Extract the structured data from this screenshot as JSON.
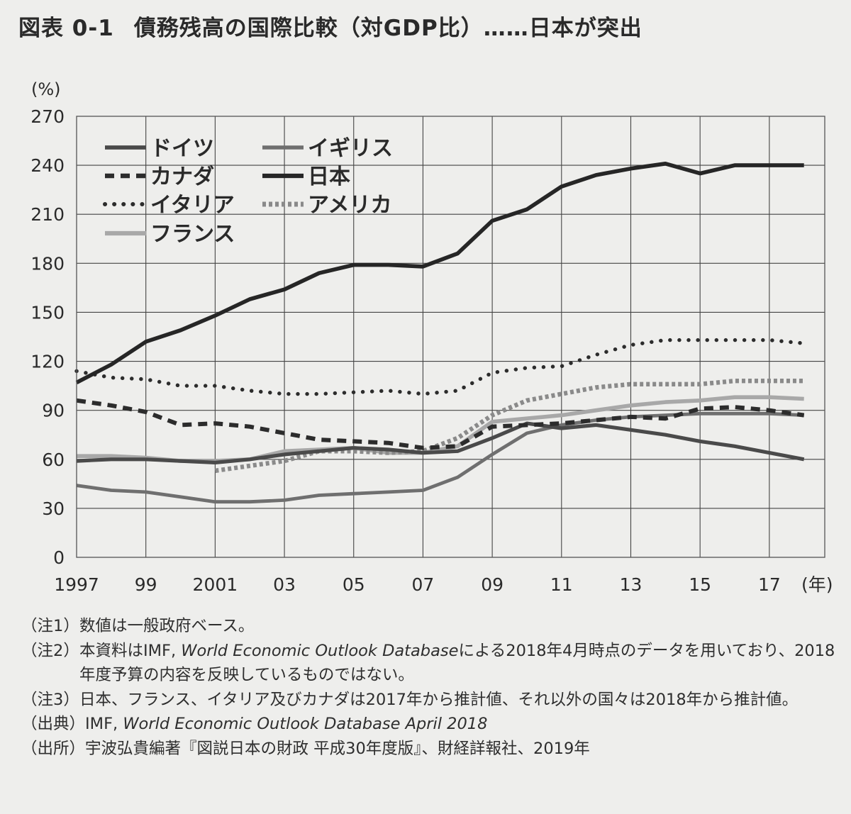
{
  "title": {
    "figure_number": "図表 0-1",
    "text": "債務残高の国際比較（対GDP比）……日本が突出"
  },
  "chart_data": {
    "type": "line",
    "y_unit_label": "(%)",
    "x_unit_label": "(年)",
    "ylim": [
      0,
      270
    ],
    "y_ticks": [
      0,
      30,
      60,
      90,
      120,
      150,
      180,
      210,
      240,
      270
    ],
    "y_tick_labels": [
      "0",
      "30",
      "60",
      "90",
      "120",
      "150",
      "180",
      "210",
      "240",
      "270"
    ],
    "xlim": [
      1997,
      2018.6
    ],
    "x_ticks": [
      1997,
      1999,
      2001,
      2003,
      2005,
      2007,
      2009,
      2011,
      2013,
      2015,
      2017
    ],
    "x_tick_labels": [
      "1997",
      "99",
      "2001",
      "03",
      "05",
      "07",
      "09",
      "11",
      "13",
      "15",
      "17"
    ],
    "x_gridlines": [
      1999,
      2001,
      2003,
      2005,
      2007,
      2009,
      2011,
      2013,
      2015,
      2017
    ],
    "y_gridlines": [
      30,
      60,
      90,
      120,
      150,
      180,
      210,
      240
    ],
    "legend_placement": "top-left",
    "series": [
      {
        "name": "ドイツ",
        "style": "solid-dark",
        "color": "#4a4a4a",
        "x": [
          1997,
          1998,
          1999,
          2000,
          2001,
          2002,
          2003,
          2004,
          2005,
          2006,
          2007,
          2008,
          2009,
          2010,
          2011,
          2012,
          2013,
          2014,
          2015,
          2016,
          2017,
          2018
        ],
        "y": [
          59,
          60,
          60,
          59,
          58,
          60,
          63,
          65,
          67,
          66,
          64,
          65,
          73,
          82,
          79,
          81,
          78,
          75,
          71,
          68,
          64,
          60
        ]
      },
      {
        "name": "イギリス",
        "style": "solid-mid",
        "color": "#6f6f6f",
        "x": [
          1997,
          1998,
          1999,
          2000,
          2001,
          2002,
          2003,
          2004,
          2005,
          2006,
          2007,
          2008,
          2009,
          2010,
          2011,
          2012,
          2013,
          2014,
          2015,
          2016,
          2017,
          2018
        ],
        "y": [
          44,
          41,
          40,
          37,
          34,
          34,
          35,
          38,
          39,
          40,
          41,
          49,
          63,
          76,
          81,
          84,
          86,
          87,
          88,
          88,
          88,
          87
        ]
      },
      {
        "name": "カナダ",
        "style": "dashed",
        "color": "#2c2c2c",
        "x": [
          1997,
          1998,
          1999,
          2000,
          2001,
          2002,
          2003,
          2004,
          2005,
          2006,
          2007,
          2008,
          2009,
          2010,
          2011,
          2012,
          2013,
          2014,
          2015,
          2016,
          2017,
          2018
        ],
        "y": [
          96,
          93,
          89,
          81,
          82,
          80,
          76,
          72,
          71,
          70,
          67,
          68,
          80,
          81,
          82,
          84,
          86,
          85,
          91,
          92,
          90,
          87
        ]
      },
      {
        "name": "日本",
        "style": "solid-black",
        "color": "#262626",
        "x": [
          1997,
          1998,
          1999,
          2000,
          2001,
          2002,
          2003,
          2004,
          2005,
          2006,
          2007,
          2008,
          2009,
          2010,
          2011,
          2012,
          2013,
          2014,
          2015,
          2016,
          2017,
          2018
        ],
        "y": [
          107,
          118,
          132,
          139,
          148,
          158,
          164,
          174,
          179,
          179,
          178,
          186,
          206,
          213,
          227,
          234,
          238,
          241,
          235,
          240,
          240,
          240
        ]
      },
      {
        "name": "イタリア",
        "style": "dotted",
        "color": "#2c2c2c",
        "x": [
          1997,
          1998,
          1999,
          2000,
          2001,
          2002,
          2003,
          2004,
          2005,
          2006,
          2007,
          2008,
          2009,
          2010,
          2011,
          2012,
          2013,
          2014,
          2015,
          2016,
          2017,
          2018
        ],
        "y": [
          114,
          110,
          109,
          105,
          105,
          102,
          100,
          100,
          101,
          102,
          100,
          102,
          113,
          116,
          117,
          124,
          130,
          133,
          133,
          133,
          133,
          131
        ]
      },
      {
        "name": "アメリカ",
        "style": "dotted-gray",
        "color": "#8a8a8a",
        "x": [
          2001,
          2002,
          2003,
          2004,
          2005,
          2006,
          2007,
          2008,
          2009,
          2010,
          2011,
          2012,
          2013,
          2014,
          2015,
          2016,
          2017,
          2018
        ],
        "y": [
          53,
          56,
          59,
          65,
          65,
          64,
          65,
          73,
          87,
          96,
          100,
          104,
          106,
          106,
          106,
          108,
          108,
          108
        ]
      },
      {
        "name": "フランス",
        "style": "solid-light",
        "color": "#a8a8a8",
        "x": [
          1997,
          1998,
          1999,
          2000,
          2001,
          2002,
          2003,
          2004,
          2005,
          2006,
          2007,
          2008,
          2009,
          2010,
          2011,
          2012,
          2013,
          2014,
          2015,
          2016,
          2017,
          2018
        ],
        "y": [
          62,
          62,
          61,
          59,
          59,
          60,
          65,
          66,
          67,
          64,
          64,
          68,
          83,
          85,
          87,
          90,
          93,
          95,
          96,
          98,
          98,
          97
        ]
      }
    ],
    "legend": [
      {
        "series": "ドイツ",
        "col": 0,
        "row": 0
      },
      {
        "series": "カナダ",
        "col": 0,
        "row": 1
      },
      {
        "series": "イタリア",
        "col": 0,
        "row": 2
      },
      {
        "series": "フランス",
        "col": 0,
        "row": 3
      },
      {
        "series": "イギリス",
        "col": 1,
        "row": 0
      },
      {
        "series": "日本",
        "col": 1,
        "row": 1
      },
      {
        "series": "アメリカ",
        "col": 1,
        "row": 2
      }
    ]
  },
  "notes": [
    {
      "key": "（注1）",
      "parts": [
        {
          "text": "数値は一般政府ベース。",
          "italic": false
        }
      ]
    },
    {
      "key": "（注2）",
      "parts": [
        {
          "text": "本資料はIMF, ",
          "italic": false
        },
        {
          "text": "World Economic Outlook Database",
          "italic": true
        },
        {
          "text": "による2018年4月時点のデータを用いており、2018年度予算の内容を反映しているものではない。",
          "italic": false
        }
      ]
    },
    {
      "key": "（注3）",
      "parts": [
        {
          "text": "日本、フランス、イタリア及びカナダは2017年から推計値、それ以外の国々は2018年から推計値。",
          "italic": false
        }
      ]
    },
    {
      "key": "（出典）",
      "parts": [
        {
          "text": "IMF, ",
          "italic": false
        },
        {
          "text": "World Economic Outlook Database April 2018",
          "italic": true
        }
      ]
    },
    {
      "key": "（出所）",
      "parts": [
        {
          "text": "宇波弘貴編著『図説日本の財政  平成30年度版』、財経詳報社、2019年",
          "italic": false
        }
      ]
    }
  ]
}
